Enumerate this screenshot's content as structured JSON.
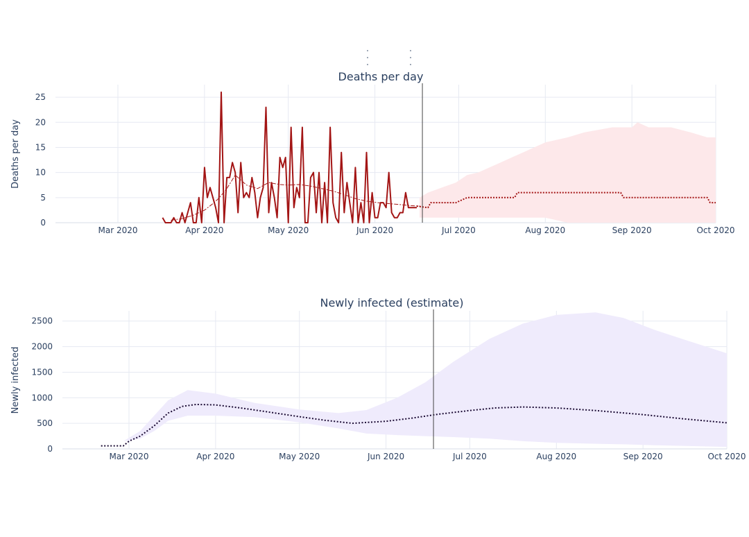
{
  "colors": {
    "deaths": "#a31515",
    "deaths_band": "#fde8ea",
    "infected_line": "#1a0a33",
    "infected_band": "#efebfc",
    "divider": "#444444"
  },
  "chart_data": [
    {
      "type": "line",
      "title": "Deaths per day",
      "xlabel": "",
      "ylabel": "Deaths per day",
      "x_axis_type": "date",
      "xlim": [
        "2020-02-05",
        "2020-10-01"
      ],
      "ylim": [
        0,
        27.5
      ],
      "x_ticks": [
        {
          "date": "2020-03-01",
          "label": "Mar 2020"
        },
        {
          "date": "2020-04-01",
          "label": "Apr 2020"
        },
        {
          "date": "2020-05-01",
          "label": "May 2020"
        },
        {
          "date": "2020-06-01",
          "label": "Jun 2020"
        },
        {
          "date": "2020-07-01",
          "label": "Jul 2020"
        },
        {
          "date": "2020-08-01",
          "label": "Aug 2020"
        },
        {
          "date": "2020-09-01",
          "label": "Sep 2020"
        },
        {
          "date": "2020-10-01",
          "label": "Oct 2020"
        }
      ],
      "y_ticks": [
        0,
        5,
        10,
        15,
        20,
        25
      ],
      "divider_date": "2020-06-18",
      "grid": true,
      "series": [
        {
          "role": "observed",
          "style": "solid",
          "x": [
            "2020-03-17",
            "2020-03-18",
            "2020-03-19",
            "2020-03-20",
            "2020-03-21",
            "2020-03-22",
            "2020-03-23",
            "2020-03-24",
            "2020-03-25",
            "2020-03-26",
            "2020-03-27",
            "2020-03-28",
            "2020-03-29",
            "2020-03-30",
            "2020-03-31",
            "2020-04-01",
            "2020-04-02",
            "2020-04-03",
            "2020-04-04",
            "2020-04-05",
            "2020-04-06",
            "2020-04-07",
            "2020-04-08",
            "2020-04-09",
            "2020-04-10",
            "2020-04-11",
            "2020-04-12",
            "2020-04-13",
            "2020-04-14",
            "2020-04-15",
            "2020-04-16",
            "2020-04-17",
            "2020-04-18",
            "2020-04-19",
            "2020-04-20",
            "2020-04-21",
            "2020-04-22",
            "2020-04-23",
            "2020-04-24",
            "2020-04-25",
            "2020-04-26",
            "2020-04-27",
            "2020-04-28",
            "2020-04-29",
            "2020-04-30",
            "2020-05-01",
            "2020-05-02",
            "2020-05-03",
            "2020-05-04",
            "2020-05-05",
            "2020-05-06",
            "2020-05-07",
            "2020-05-08",
            "2020-05-09",
            "2020-05-10",
            "2020-05-11",
            "2020-05-12",
            "2020-05-13",
            "2020-05-14",
            "2020-05-15",
            "2020-05-16",
            "2020-05-17",
            "2020-05-18",
            "2020-05-19",
            "2020-05-20",
            "2020-05-21",
            "2020-05-22",
            "2020-05-23",
            "2020-05-24",
            "2020-05-25",
            "2020-05-26",
            "2020-05-27",
            "2020-05-28",
            "2020-05-29",
            "2020-05-30",
            "2020-05-31",
            "2020-06-01",
            "2020-06-02",
            "2020-06-03",
            "2020-06-04",
            "2020-06-05",
            "2020-06-06",
            "2020-06-07",
            "2020-06-08",
            "2020-06-09",
            "2020-06-10",
            "2020-06-11",
            "2020-06-12",
            "2020-06-13",
            "2020-06-14",
            "2020-06-15",
            "2020-06-16"
          ],
          "values": [
            1,
            0,
            0,
            0,
            1,
            0,
            0,
            2,
            0,
            2,
            4,
            0,
            0,
            5,
            0,
            11,
            5,
            7,
            5,
            3,
            0,
            26,
            0,
            9,
            9,
            12,
            10,
            2,
            12,
            5,
            6,
            5,
            9,
            6,
            1,
            5,
            7,
            23,
            2,
            8,
            5,
            1,
            13,
            11,
            13,
            0,
            19,
            3,
            7,
            5,
            19,
            0,
            0,
            9,
            10,
            2,
            10,
            0,
            8,
            0,
            19,
            4,
            1,
            0,
            14,
            2,
            8,
            4,
            0,
            11,
            0,
            4,
            0,
            14,
            0,
            6,
            1,
            1,
            4,
            4,
            3,
            10,
            2,
            1,
            1,
            2,
            2,
            6,
            3,
            3,
            3,
            3
          ]
        },
        {
          "role": "smoothed",
          "style": "dashdot",
          "x": [
            "2020-03-20",
            "2020-03-24",
            "2020-03-28",
            "2020-04-01",
            "2020-04-04",
            "2020-04-06",
            "2020-04-09",
            "2020-04-12",
            "2020-04-16",
            "2020-04-20",
            "2020-04-24",
            "2020-04-28",
            "2020-05-01",
            "2020-05-05",
            "2020-05-09",
            "2020-05-13",
            "2020-05-17",
            "2020-05-21",
            "2020-05-25",
            "2020-05-29",
            "2020-06-02",
            "2020-06-06",
            "2020-06-10",
            "2020-06-14",
            "2020-06-17"
          ],
          "values": [
            0.5,
            0.8,
            1.5,
            2.5,
            3.8,
            4.8,
            6.8,
            9.5,
            7.5,
            6.8,
            8.0,
            7.6,
            7.5,
            7.6,
            7.3,
            6.8,
            6.3,
            5.6,
            4.8,
            4.3,
            4.0,
            3.8,
            3.6,
            3.4,
            3.3
          ]
        },
        {
          "role": "forecast",
          "style": "dotted",
          "x": [
            "2020-06-16",
            "2020-06-20",
            "2020-06-21",
            "2020-06-30",
            "2020-07-04",
            "2020-07-14",
            "2020-07-21",
            "2020-07-22",
            "2020-08-01",
            "2020-08-15",
            "2020-08-28",
            "2020-08-29",
            "2020-09-15",
            "2020-09-28",
            "2020-09-29",
            "2020-10-01"
          ],
          "values": [
            3.3,
            3.0,
            4.0,
            4.0,
            5.0,
            5.0,
            5.0,
            6.0,
            6.0,
            6.0,
            6.0,
            5.0,
            5.0,
            5.0,
            4.0,
            4.0
          ]
        }
      ],
      "band": {
        "x": [
          "2020-06-17",
          "2020-06-20",
          "2020-06-25",
          "2020-06-30",
          "2020-07-04",
          "2020-07-08",
          "2020-07-12",
          "2020-07-16",
          "2020-07-20",
          "2020-07-24",
          "2020-07-28",
          "2020-08-01",
          "2020-08-05",
          "2020-08-09",
          "2020-08-15",
          "2020-08-25",
          "2020-09-01",
          "2020-09-03",
          "2020-09-07",
          "2020-09-15",
          "2020-09-22",
          "2020-09-28",
          "2020-10-01"
        ],
        "upper": [
          5.0,
          6.0,
          7.0,
          8.0,
          9.5,
          10.0,
          11.0,
          12.0,
          13.0,
          14.0,
          15.0,
          16.0,
          16.5,
          17.0,
          18.0,
          19.0,
          19.0,
          20.0,
          19.0,
          19.0,
          18.0,
          17.0,
          17.0
        ],
        "lower": [
          1.0,
          1.0,
          1.0,
          1.0,
          1.0,
          1.0,
          1.0,
          1.0,
          1.0,
          1.0,
          1.0,
          1.0,
          0.5,
          0.0,
          0.0,
          0.0,
          0.0,
          0.0,
          0.0,
          0.0,
          0.0,
          0.0,
          0.0
        ]
      }
    },
    {
      "type": "line",
      "title": "Newly infected (estimate)",
      "xlabel": "",
      "ylabel": "Newly infected",
      "x_axis_type": "date",
      "xlim": [
        "2020-02-04",
        "2020-10-01"
      ],
      "ylim": [
        0,
        2700
      ],
      "x_ticks": [
        {
          "date": "2020-03-01",
          "label": "Mar 2020"
        },
        {
          "date": "2020-04-01",
          "label": "Apr 2020"
        },
        {
          "date": "2020-05-01",
          "label": "May 2020"
        },
        {
          "date": "2020-06-01",
          "label": "Jun 2020"
        },
        {
          "date": "2020-07-01",
          "label": "Jul 2020"
        },
        {
          "date": "2020-08-01",
          "label": "Aug 2020"
        },
        {
          "date": "2020-09-01",
          "label": "Sep 2020"
        },
        {
          "date": "2020-10-01",
          "label": "Oct 2020"
        }
      ],
      "y_ticks": [
        0,
        500,
        1000,
        1500,
        2000,
        2500
      ],
      "divider_date": "2020-06-18",
      "grid": true,
      "series": [
        {
          "role": "estimate",
          "style": "dotted",
          "x": [
            "2020-02-20",
            "2020-02-28",
            "2020-03-01",
            "2020-03-05",
            "2020-03-10",
            "2020-03-15",
            "2020-03-20",
            "2020-03-25",
            "2020-04-01",
            "2020-04-10",
            "2020-04-20",
            "2020-05-01",
            "2020-05-10",
            "2020-05-20",
            "2020-06-01",
            "2020-06-10",
            "2020-06-20",
            "2020-07-01",
            "2020-07-10",
            "2020-07-20",
            "2020-08-01",
            "2020-08-15",
            "2020-09-01",
            "2020-09-15",
            "2020-10-01"
          ],
          "values": [
            60,
            60,
            150,
            250,
            450,
            700,
            830,
            870,
            860,
            800,
            720,
            630,
            560,
            500,
            540,
            600,
            680,
            750,
            800,
            820,
            800,
            750,
            670,
            590,
            510
          ]
        }
      ],
      "band": {
        "x": [
          "2020-02-28",
          "2020-03-05",
          "2020-03-10",
          "2020-03-15",
          "2020-03-22",
          "2020-04-01",
          "2020-04-15",
          "2020-05-01",
          "2020-05-15",
          "2020-05-25",
          "2020-06-05",
          "2020-06-15",
          "2020-06-25",
          "2020-07-08",
          "2020-07-20",
          "2020-08-01",
          "2020-08-15",
          "2020-08-25",
          "2020-09-05",
          "2020-09-15",
          "2020-10-01"
        ],
        "upper": [
          150,
          350,
          650,
          950,
          1150,
          1080,
          900,
          770,
          700,
          760,
          1000,
          1300,
          1700,
          2150,
          2450,
          2620,
          2670,
          2560,
          2330,
          2150,
          1870
        ],
        "lower": [
          150,
          200,
          350,
          550,
          650,
          650,
          620,
          520,
          400,
          300,
          270,
          250,
          230,
          200,
          150,
          120,
          100,
          90,
          70,
          60,
          40
        ]
      }
    }
  ]
}
